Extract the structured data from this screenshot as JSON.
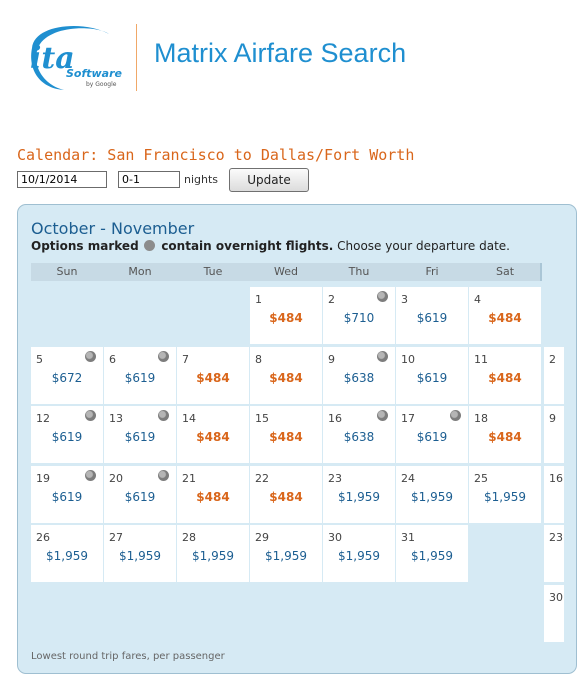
{
  "header": {
    "logo_text": "ita",
    "logo_sub": "Software",
    "logo_by": "by Google",
    "app_title": "Matrix Airfare Search"
  },
  "search": {
    "heading": "Calendar: San Francisco to Dallas/Fort Worth",
    "date_value": "10/1/2014",
    "nights_value": "0-1",
    "nights_label": "nights",
    "update_label": "Update"
  },
  "calendar": {
    "title": "October - November",
    "note_bold_a": "Options marked",
    "note_bold_b": "contain overnight flights.",
    "note_rest": " Choose your departure date.",
    "weekdays": [
      "Sun",
      "Mon",
      "Tue",
      "Wed",
      "Thu",
      "Fri",
      "Sat"
    ],
    "days": [
      {
        "day": "1",
        "price": "$484",
        "low": true,
        "overnight": false
      },
      {
        "day": "2",
        "price": "$710",
        "low": false,
        "overnight": true
      },
      {
        "day": "3",
        "price": "$619",
        "low": false,
        "overnight": false
      },
      {
        "day": "4",
        "price": "$484",
        "low": true,
        "overnight": false
      },
      {
        "day": "5",
        "price": "$672",
        "low": false,
        "overnight": true
      },
      {
        "day": "6",
        "price": "$619",
        "low": false,
        "overnight": true
      },
      {
        "day": "7",
        "price": "$484",
        "low": true,
        "overnight": false
      },
      {
        "day": "8",
        "price": "$484",
        "low": true,
        "overnight": false
      },
      {
        "day": "9",
        "price": "$638",
        "low": false,
        "overnight": true
      },
      {
        "day": "10",
        "price": "$619",
        "low": false,
        "overnight": false
      },
      {
        "day": "11",
        "price": "$484",
        "low": true,
        "overnight": false
      },
      {
        "day": "12",
        "price": "$619",
        "low": false,
        "overnight": true
      },
      {
        "day": "13",
        "price": "$619",
        "low": false,
        "overnight": true
      },
      {
        "day": "14",
        "price": "$484",
        "low": true,
        "overnight": false
      },
      {
        "day": "15",
        "price": "$484",
        "low": true,
        "overnight": false
      },
      {
        "day": "16",
        "price": "$638",
        "low": false,
        "overnight": true
      },
      {
        "day": "17",
        "price": "$619",
        "low": false,
        "overnight": true
      },
      {
        "day": "18",
        "price": "$484",
        "low": true,
        "overnight": false
      },
      {
        "day": "19",
        "price": "$619",
        "low": false,
        "overnight": true
      },
      {
        "day": "20",
        "price": "$619",
        "low": false,
        "overnight": true
      },
      {
        "day": "21",
        "price": "$484",
        "low": true,
        "overnight": false
      },
      {
        "day": "22",
        "price": "$484",
        "low": true,
        "overnight": false
      },
      {
        "day": "23",
        "price": "$1,959",
        "low": false,
        "overnight": false
      },
      {
        "day": "24",
        "price": "$1,959",
        "low": false,
        "overnight": false
      },
      {
        "day": "25",
        "price": "$1,959",
        "low": false,
        "overnight": false
      },
      {
        "day": "26",
        "price": "$1,959",
        "low": false,
        "overnight": false
      },
      {
        "day": "27",
        "price": "$1,959",
        "low": false,
        "overnight": false
      },
      {
        "day": "28",
        "price": "$1,959",
        "low": false,
        "overnight": false
      },
      {
        "day": "29",
        "price": "$1,959",
        "low": false,
        "overnight": false
      },
      {
        "day": "30",
        "price": "$1,959",
        "low": false,
        "overnight": false
      },
      {
        "day": "31",
        "price": "$1,959",
        "low": false,
        "overnight": false
      }
    ],
    "next_month_edge": [
      "2",
      "9",
      "16",
      "23",
      "30"
    ],
    "footnote": "Lowest round trip fares, per passenger"
  },
  "colors": {
    "brand_blue": "#1f8fd0",
    "accent_orange": "#d9661b",
    "fare_blue": "#1c5e91",
    "panel_bg": "#d6eaf4"
  }
}
